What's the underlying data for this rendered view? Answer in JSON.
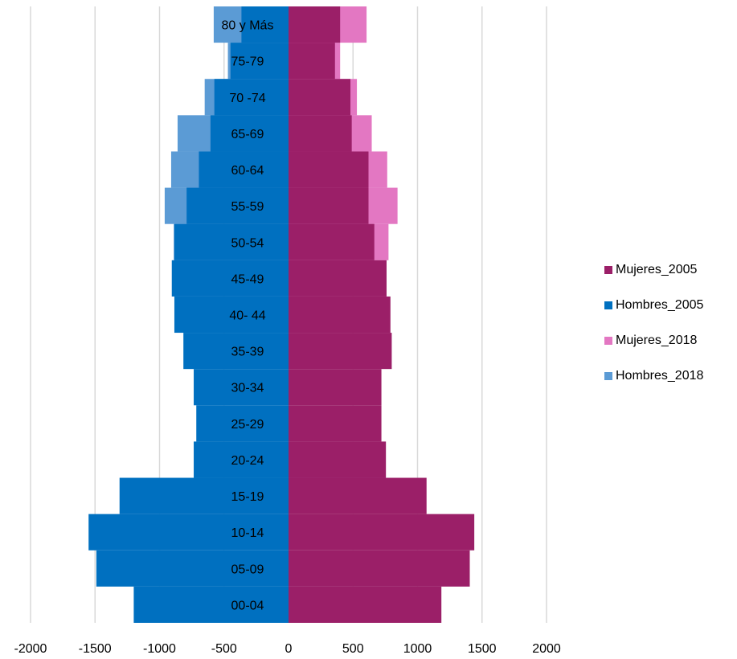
{
  "chart_data": {
    "type": "bar",
    "orientation": "horizontal",
    "categories": [
      "00-04",
      "05-09",
      "10-14",
      "15-19",
      "20-24",
      "25-29",
      "30-34",
      "35-39",
      "40- 44",
      "45-49",
      "50-54",
      "55-59",
      "60-64",
      "65-69",
      "70 -74",
      "75-79",
      "80 y Más"
    ],
    "series": [
      {
        "name": "Mujeres_2005",
        "color": "#9B1F68",
        "values": [
          1185,
          1405,
          1440,
          1070,
          755,
          720,
          720,
          800,
          790,
          760,
          665,
          620,
          620,
          490,
          480,
          360,
          400
        ]
      },
      {
        "name": "Hombres_2005",
        "color": "#0070C0",
        "values": [
          -1200,
          -1490,
          -1550,
          -1310,
          -735,
          -715,
          -735,
          -815,
          -885,
          -905,
          -885,
          -790,
          -695,
          -605,
          -575,
          -450,
          -365
        ]
      },
      {
        "name": "Mujeres_2018",
        "color": "#E377C2",
        "values": [
          0,
          0,
          0,
          0,
          0,
          0,
          0,
          0,
          0,
          0,
          775,
          845,
          765,
          645,
          530,
          400,
          605
        ]
      },
      {
        "name": "Hombres_2018",
        "color": "#5B9BD5",
        "values": [
          0,
          0,
          0,
          0,
          0,
          0,
          0,
          0,
          0,
          0,
          -890,
          -960,
          -910,
          -860,
          -650,
          -470,
          -580
        ]
      }
    ],
    "x_ticks": [
      "-2000",
      "-1500",
      "-1000",
      "-500",
      "0",
      "500",
      "1000",
      "1500",
      "2000"
    ],
    "xlim": [
      -2000,
      2000
    ],
    "grid": true,
    "legend_position": "right"
  },
  "legend": {
    "items": [
      {
        "label": "Mujeres_2005",
        "color": "#9B1F68"
      },
      {
        "label": "Hombres_2005",
        "color": "#0070C0"
      },
      {
        "label": "Mujeres_2018",
        "color": "#E377C2"
      },
      {
        "label": "Hombres_2018",
        "color": "#5B9BD5"
      }
    ]
  }
}
